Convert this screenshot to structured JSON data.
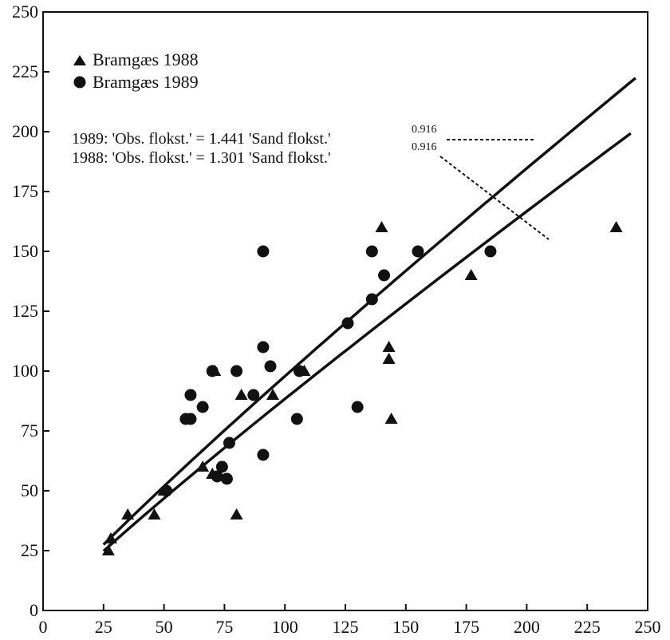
{
  "chart_data": {
    "type": "scatter",
    "title": "",
    "xlabel": "",
    "ylabel": "",
    "xlim": [
      0,
      250
    ],
    "ylim": [
      0,
      250
    ],
    "xticks": [
      0,
      25,
      50,
      75,
      100,
      125,
      150,
      175,
      200,
      225,
      250
    ],
    "yticks": [
      0,
      25,
      50,
      75,
      100,
      125,
      150,
      175,
      200,
      225,
      250
    ],
    "grid": false,
    "legend_position": "top-left",
    "series": [
      {
        "name": "Bramgæs 1988",
        "marker": "triangle",
        "points": [
          [
            27,
            25
          ],
          [
            28,
            30
          ],
          [
            35,
            40
          ],
          [
            46,
            40
          ],
          [
            50,
            50
          ],
          [
            66,
            60
          ],
          [
            70,
            57
          ],
          [
            71,
            100
          ],
          [
            80,
            40
          ],
          [
            82,
            90
          ],
          [
            95,
            90
          ],
          [
            108,
            100
          ],
          [
            140,
            160
          ],
          [
            143,
            110
          ],
          [
            143,
            105
          ],
          [
            144,
            80
          ],
          [
            177,
            140
          ],
          [
            237,
            160
          ]
        ]
      },
      {
        "name": "Bramgæs 1989",
        "marker": "circle",
        "points": [
          [
            51,
            50
          ],
          [
            59,
            80
          ],
          [
            61,
            80
          ],
          [
            61,
            90
          ],
          [
            66,
            85
          ],
          [
            70,
            100
          ],
          [
            72,
            56
          ],
          [
            74,
            60
          ],
          [
            76,
            55
          ],
          [
            77,
            70
          ],
          [
            80,
            100
          ],
          [
            87,
            90
          ],
          [
            91,
            65
          ],
          [
            91,
            110
          ],
          [
            91,
            150
          ],
          [
            94,
            102
          ],
          [
            105,
            80
          ],
          [
            106,
            100
          ],
          [
            126,
            120
          ],
          [
            130,
            85
          ],
          [
            136,
            130
          ],
          [
            136,
            150
          ],
          [
            141,
            140
          ],
          [
            155,
            150
          ],
          [
            185,
            150
          ]
        ]
      }
    ],
    "fit_lines": [
      {
        "label": "1989: 'Obs. flokst.' = 1.441 'Sand flokst.'",
        "exponent": "0.916",
        "coef": 1.441,
        "power": 0.916,
        "x_range": [
          25,
          245
        ]
      },
      {
        "label": "1988: 'Obs. flokst.' = 1.301 'Sand flokst.'",
        "exponent": "0.916",
        "coef": 1.301,
        "power": 0.916,
        "x_range": [
          25,
          243
        ]
      }
    ]
  }
}
